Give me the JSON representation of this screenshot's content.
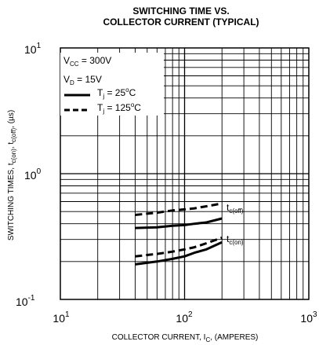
{
  "chart_data": {
    "type": "line",
    "title": [
      "SWITCHING TIME VS.",
      "COLLECTOR CURRENT (TYPICAL)"
    ],
    "xlabel": {
      "prefix": "COLLECTOR CURRENT, I",
      "sub": "C",
      "suffix": ", (AMPERES)"
    },
    "ylabel": {
      "p1": "SWITCHING TIMES, t",
      "s1": "c(on)",
      "p2": ", t",
      "s2": "c(off)",
      "p3": ", (µs)"
    },
    "x_scale": "log",
    "y_scale": "log",
    "xlim": [
      10,
      1000
    ],
    "ylim": [
      0.1,
      10
    ],
    "x_ticks": [
      {
        "value": 10,
        "base": "10",
        "exp": "1"
      },
      {
        "value": 100,
        "base": "10",
        "exp": "2"
      },
      {
        "value": 1000,
        "base": "10",
        "exp": "3"
      }
    ],
    "y_ticks": [
      {
        "value": 0.1,
        "base": "10",
        "exp": "-1"
      },
      {
        "value": 1,
        "base": "10",
        "exp": "0"
      },
      {
        "value": 10,
        "base": "10",
        "exp": "1"
      }
    ],
    "grid": true,
    "legend": {
      "position": "top-left",
      "conditions": [
        {
          "main": "V",
          "sub": "CC",
          "rest": " = 300V"
        },
        {
          "main": "V",
          "sub": "D",
          "rest": " = 15V"
        }
      ],
      "entries": [
        {
          "main": "T",
          "sub": "j",
          "rest": " = 25",
          "sup": "o",
          "tail": "C",
          "style": "solid"
        },
        {
          "main": "T",
          "sub": "j",
          "rest": " = 125",
          "sup": "o",
          "tail": "C",
          "style": "dashed"
        }
      ]
    },
    "series": [
      {
        "curve": "tc(off)",
        "condition": "Tj = 25°C",
        "style": "solid",
        "x": [
          40,
          60,
          80,
          100,
          120,
          150,
          200
        ],
        "y": [
          0.37,
          0.375,
          0.385,
          0.39,
          0.4,
          0.41,
          0.44
        ]
      },
      {
        "curve": "tc(off)",
        "condition": "Tj = 125°C",
        "style": "dashed",
        "x": [
          40,
          60,
          80,
          100,
          120,
          150,
          200
        ],
        "y": [
          0.47,
          0.49,
          0.51,
          0.52,
          0.53,
          0.55,
          0.58
        ]
      },
      {
        "curve": "tc(on)",
        "condition": "Tj = 25°C",
        "style": "solid",
        "x": [
          40,
          60,
          80,
          100,
          120,
          150,
          200
        ],
        "y": [
          0.19,
          0.2,
          0.21,
          0.22,
          0.235,
          0.25,
          0.285
        ]
      },
      {
        "curve": "tc(on)",
        "condition": "Tj = 125°C",
        "style": "dashed",
        "x": [
          40,
          60,
          80,
          100,
          120,
          150,
          200
        ],
        "y": [
          0.22,
          0.23,
          0.24,
          0.25,
          0.26,
          0.28,
          0.31
        ]
      }
    ],
    "annotations": [
      {
        "main": "t",
        "sub": "c(off)",
        "x": 200,
        "y": 0.5
      },
      {
        "main": "t",
        "sub": "c(on)",
        "x": 200,
        "y": 0.27
      }
    ]
  }
}
